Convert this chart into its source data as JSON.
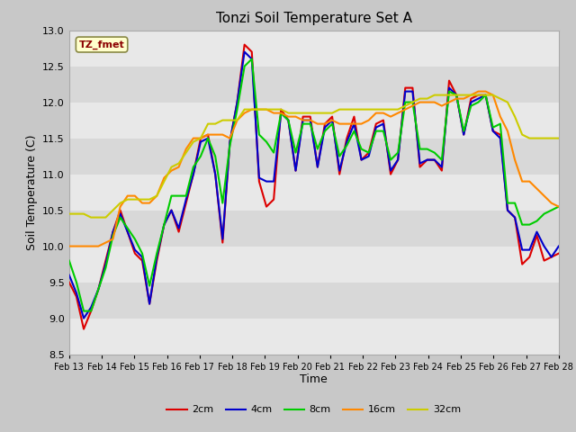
{
  "title": "Tonzi Soil Temperature Set A",
  "xlabel": "Time",
  "ylabel": "Soil Temperature (C)",
  "ylim": [
    8.5,
    13.0
  ],
  "annotation_text": "TZ_fmet",
  "annotation_color": "#8b0000",
  "annotation_bg": "#ffffcc",
  "annotation_border": "#888844",
  "fig_bg_color": "#c8c8c8",
  "plot_bg_light": "#e8e8e8",
  "plot_bg_dark": "#d8d8d8",
  "legend_entries": [
    "2cm",
    "4cm",
    "8cm",
    "16cm",
    "32cm"
  ],
  "line_colors": [
    "#dd0000",
    "#0000cc",
    "#00cc00",
    "#ff8800",
    "#cccc00"
  ],
  "line_width": 1.5,
  "xtick_labels": [
    "Feb 13",
    "Feb 14",
    "Feb 15",
    "Feb 16",
    "Feb 17",
    "Feb 18",
    "Feb 19",
    "Feb 20",
    "Feb 21",
    "Feb 22",
    "Feb 23",
    "Feb 24",
    "Feb 25",
    "Feb 26",
    "Feb 27",
    "Feb 28"
  ],
  "series_2cm": [
    9.5,
    9.3,
    8.85,
    9.1,
    9.4,
    9.8,
    10.2,
    10.5,
    10.2,
    9.9,
    9.8,
    9.2,
    9.8,
    10.3,
    10.5,
    10.2,
    10.6,
    11.0,
    11.5,
    11.55,
    11.0,
    10.05,
    11.45,
    12.0,
    12.8,
    12.7,
    10.9,
    10.55,
    10.65,
    11.9,
    11.75,
    11.05,
    11.8,
    11.8,
    11.1,
    11.7,
    11.8,
    11.0,
    11.5,
    11.8,
    11.2,
    11.3,
    11.7,
    11.75,
    11.0,
    11.2,
    12.2,
    12.2,
    11.1,
    11.2,
    11.2,
    11.05,
    12.3,
    12.1,
    11.55,
    12.05,
    12.1,
    12.1,
    11.6,
    11.55,
    10.5,
    10.4,
    9.75,
    9.85,
    10.15,
    9.8,
    9.85,
    9.9
  ],
  "series_4cm": [
    9.6,
    9.35,
    9.0,
    9.15,
    9.4,
    9.75,
    10.2,
    10.45,
    10.2,
    9.95,
    9.85,
    9.2,
    9.85,
    10.3,
    10.5,
    10.25,
    10.65,
    11.0,
    11.45,
    11.5,
    11.0,
    10.1,
    11.45,
    12.0,
    12.7,
    12.6,
    10.95,
    10.9,
    10.9,
    11.85,
    11.75,
    11.05,
    11.75,
    11.75,
    11.1,
    11.65,
    11.75,
    11.05,
    11.45,
    11.7,
    11.2,
    11.25,
    11.65,
    11.7,
    11.05,
    11.2,
    12.15,
    12.15,
    11.15,
    11.2,
    11.2,
    11.1,
    12.2,
    12.1,
    11.55,
    12.0,
    12.05,
    12.1,
    11.6,
    11.5,
    10.5,
    10.4,
    9.95,
    9.95,
    10.2,
    10.0,
    9.85,
    10.0
  ],
  "series_8cm": [
    9.8,
    9.5,
    9.1,
    9.1,
    9.4,
    9.7,
    10.15,
    10.4,
    10.25,
    10.1,
    9.9,
    9.45,
    9.9,
    10.3,
    10.7,
    10.7,
    10.7,
    11.1,
    11.25,
    11.5,
    11.25,
    10.6,
    11.4,
    11.9,
    12.5,
    12.6,
    11.55,
    11.45,
    11.3,
    11.85,
    11.75,
    11.3,
    11.7,
    11.7,
    11.35,
    11.6,
    11.7,
    11.25,
    11.4,
    11.6,
    11.35,
    11.3,
    11.6,
    11.6,
    11.2,
    11.3,
    12.0,
    12.0,
    11.35,
    11.35,
    11.3,
    11.2,
    12.15,
    12.1,
    11.6,
    11.95,
    12.0,
    12.1,
    11.65,
    11.7,
    10.6,
    10.6,
    10.3,
    10.3,
    10.35,
    10.45,
    10.5,
    10.55
  ],
  "series_16cm": [
    10.0,
    10.0,
    10.0,
    10.0,
    10.0,
    10.05,
    10.1,
    10.55,
    10.7,
    10.7,
    10.6,
    10.6,
    10.7,
    10.95,
    11.05,
    11.1,
    11.35,
    11.5,
    11.5,
    11.55,
    11.55,
    11.55,
    11.5,
    11.75,
    11.85,
    11.9,
    11.9,
    11.9,
    11.85,
    11.85,
    11.8,
    11.8,
    11.75,
    11.75,
    11.7,
    11.7,
    11.75,
    11.7,
    11.7,
    11.7,
    11.7,
    11.75,
    11.85,
    11.85,
    11.8,
    11.85,
    11.9,
    11.95,
    12.0,
    12.0,
    12.0,
    11.95,
    12.0,
    12.05,
    12.05,
    12.1,
    12.15,
    12.15,
    12.1,
    11.8,
    11.6,
    11.2,
    10.9,
    10.9,
    10.8,
    10.7,
    10.6,
    10.55
  ],
  "series_32cm": [
    10.45,
    10.45,
    10.45,
    10.4,
    10.4,
    10.4,
    10.5,
    10.6,
    10.65,
    10.65,
    10.65,
    10.65,
    10.7,
    10.9,
    11.1,
    11.15,
    11.3,
    11.45,
    11.5,
    11.7,
    11.7,
    11.75,
    11.75,
    11.75,
    11.9,
    11.9,
    11.9,
    11.9,
    11.9,
    11.9,
    11.85,
    11.85,
    11.85,
    11.85,
    11.85,
    11.85,
    11.85,
    11.9,
    11.9,
    11.9,
    11.9,
    11.9,
    11.9,
    11.9,
    11.9,
    11.9,
    11.95,
    12.0,
    12.05,
    12.05,
    12.1,
    12.1,
    12.1,
    12.1,
    12.1,
    12.1,
    12.1,
    12.1,
    12.1,
    12.05,
    12.0,
    11.8,
    11.55,
    11.5,
    11.5,
    11.5,
    11.5,
    11.5
  ]
}
